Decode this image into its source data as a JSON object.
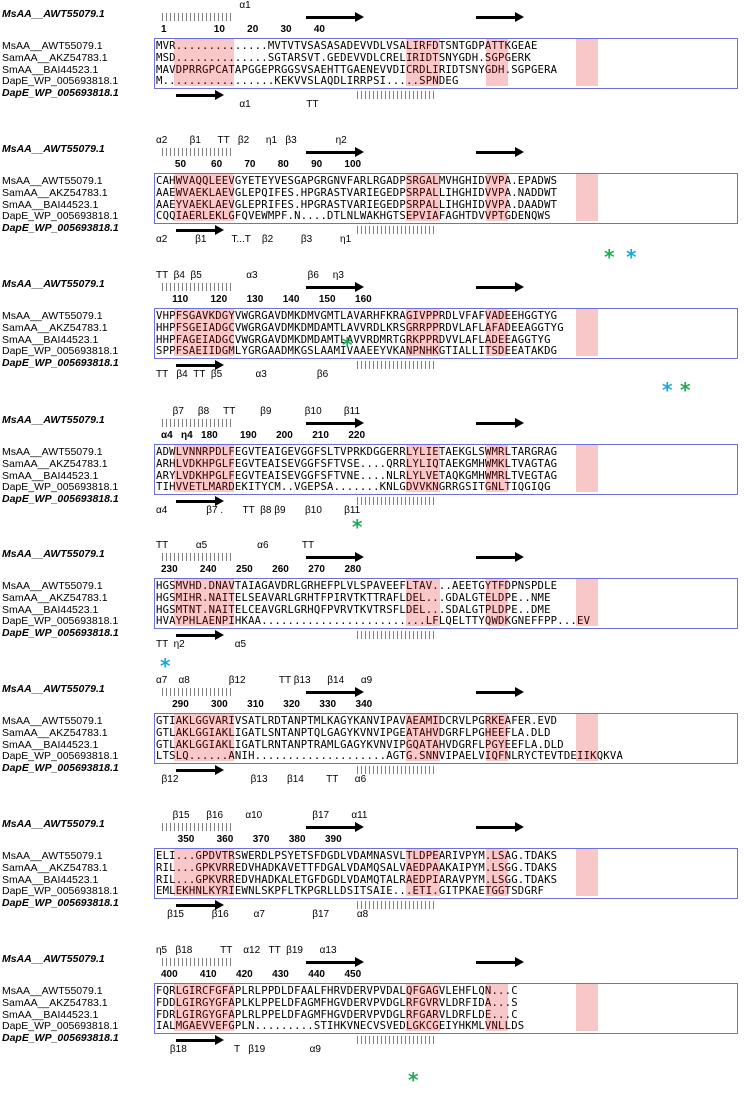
{
  "ref_label": "MsAA__AWT55079.1",
  "names": [
    "MsAA__AWT55079.1",
    "SamAA__AKZ54783.1",
    "SmAA__BAI44523.1",
    "DapE_WP_005693818.1",
    "DapE_WP_005693818.1"
  ],
  "blocks": [
    {
      "numbers": "1                 10        20        30        40",
      "top_ss": "                              α1",
      "rows": [
        "MVR..............MVTVTVSASASADEVVDLVSALIRFDTSNTGDPATTKGEAE",
        "MSD..............SGTARSVT.GEDEVVDLCRELIRIDTSNYGDH.SGPGERK",
        "MAVDPRRGPCATAPGGEPRGGSVSAEHTTGAENEVVDICRDLIRIDTSNYGDH.SGPGERA",
        "M.................KEKVVSLAQDLIRRPSI.....SPNDEG",
        "                                              "
      ],
      "bottom_ss": "                              α1                    TT"
    },
    {
      "numbers": "     50         60        70        80        90        100",
      "top_ss": "α2        β1      TT   β2      η1   β3              η2",
      "rows": [
        "CAHWVAQQLEEVGYETEYVESGAPGRGNVFARLRGADPSRGALMVHGHIDVVPA.EPADWS",
        "AAEWVAEKLAEVGLEPQIFES.HPGRASTVARIEGEDPSRPALLIHGHIDVVPA.NADDWT",
        "AAEYVAEKLAEVGLEPRIFES.HPGRASTVARIEGEDPSRPALLIHGHIDVVPA.DAADWT",
        "CQQIAERLEKLGFQVEWMPF.N....DTLNLWAKHGTSEPVIAFAGHTDVVPTGDENQWS",
        "                                                            "
      ],
      "bottom_ss": "α2          β1         T...T    β2          β3          η1"
    },
    {
      "numbers": "    110        120       130       140       150       160",
      "top_ss": "TT  β4  β5                α3                  β6     η3",
      "rows": [
        "VHPFSGAVKDGYVWGRGAVDMKDMVGMTLAVARHFKRAGIVPPRDLVFAFVADEEHGGTYG",
        "HHPFSGEIADGCVWGRGAVDMKDMDAMTLAVVRDLKRSGRRPPRDVLAFLAFADEEAGGTYG",
        "HHPFAGEIADGCVWGRGAVDMKDMDAMTLAVVRDMRTGRKPPRDVVLAFLADEEAGGTYG",
        "SPPFSAEIIDGMLYGRGAADMKGSLAAMIVAAEEYVKANPNHKGTIALLITSDEEATAKDG",
        "                                                            "
      ],
      "bottom_ss": "TT   β4  TT  β5            α3                  β6"
    },
    {
      "numbers": "α4   η4   180        190       200       210       220",
      "top_ss": "      β7     β8     TT         β9            β10        β11",
      "rows": [
        "ADWLVNNRPDLFEGVTEAIGEVGGFSLTVPRKDGGERRLYLIETAEKGLSWMRLTARGRAG",
        "ARHLVDKHPGLFEGVTEAISEVGGFSFTVSE....QRRLYLIQTAEKGMHWMKLTVAGTAG",
        "ARYLVDKHPGLFEGVTEAISEVGGFSFTVNE....NLRLYLVETAQKGMHWMRLTVEGTAG",
        "TIHVVETLMARDEKITYCM..VGEPSA.......KNLGDVVKNGRRGSITGNLTIQGIQG",
        "                                                            "
      ],
      "bottom_ss": "α4              β7 .       TT  β8 β9       β10        β11"
    },
    {
      "numbers": "230        240       250       260       270       280",
      "top_ss": "TT          α5                  α6            TT",
      "rows": [
        "HGSMVHD.DNAVTAIAGAVDRLGRHEFPLVLSPAVEEFLTAV...AEETGYTFDPNSPDLE",
        "HGSMIHR.NAITELSEAVARLGRHTFPIRVTKTTRAFLDEL...GDALGTELDPE..NME",
        "HGSMTNT.NAITELCEAVGRLGRHQFPVRVTKVTRSFLDEL...SDALGTPLDPE..DME",
        "HVAYPHLAENPIHKAA.........................LFLQELTTYQWDKGNEFFPP...EV",
        "                                                            "
      ],
      "bottom_ss": "TT  η2                  α5"
    },
    {
      "numbers": "    290        300       310       320       330       340",
      "top_ss": "α7    α8              β12            TT β13      β14      α9",
      "rows": [
        "GTIAKLGGVARIVSATLRDTANPTMLKAGYKANVIPAVAEAMIDCRVLPGRKEAFER.EVD",
        "GTLAKLGGIAKLIGATLSNTANPTQLGAGYKVNVIPGEATAHVDGRFLPGHEEFLA.DLD",
        "GTLAKLGGIAKLIGATLRNTANPTRAMLGAGYKVNVIPGQATAHVDGRFLPGYEEFLA.DLD",
        "LTSLQ......ANIH....................AGTG.SNNVIPAELVIQFNLRYCTEVTDEIIKQKVA",
        "                                                            "
      ],
      "bottom_ss": "  β12                          β13       β14        TT      α6"
    },
    {
      "numbers": "      350        360       370       380       390",
      "top_ss": "      β15      β16        α10                  β17        α11",
      "rows": [
        "ELI...GPDVTRSWERDLPSYETSFDGDLVDAMNASVLTLDPEARIVPYM.LSAG.TDAKS",
        "RIL...GPKVRREDVHADKAVETTFDGALVDAMQSALVAEDPAAKAIPYM.LSGG.TDAKS",
        "RIL...GPKVRREDVHADKALETGFDGDLVDAMQTALRAEDPIARAVPYM.LSGG.TDAKS",
        "EMLEKHNLKYRIEWNLSKPFLTKPGRLLDSITSAIE...ETI.GITPKAETGGTSDGRF",
        "                                                            "
      ],
      "bottom_ss": "    β15          β16         α7                 β17          α8"
    },
    {
      "numbers": "400        410       420       430       440       450",
      "top_ss": "η5   β18          TT    α12   TT  β19      α13",
      "rows": [
        "FQRLGIRCFGFAPLRLPPDLDFAALFHRVDERVPVDALQFGAGVLEHFLQN...C",
        "FDDLGIRGYGFAPLKLPPELDFAGMFHGVDERVPVDGLRFGVRVLDRFIDA...S",
        "FDRLGIRGYGFAPLRLPPELDFAGMFHGVDERVPVDGLRFGARVLDRFLDE...C",
        "IALMGAEVVEFGPLN.........STIHKVNECVSVEDLGKCGEIYHKMLVNLLDS",
        "                                                            "
      ],
      "bottom_ss": "     β18                 T   β19                α9"
    }
  ],
  "colors": {
    "identity_bg": "#e00000",
    "similar_fg": "#e00000",
    "box": "#6f6fd8",
    "catalytic_green": "#1faa55",
    "catalytic_blue": "#18a8e0",
    "green_box": "#1a9e4a"
  }
}
